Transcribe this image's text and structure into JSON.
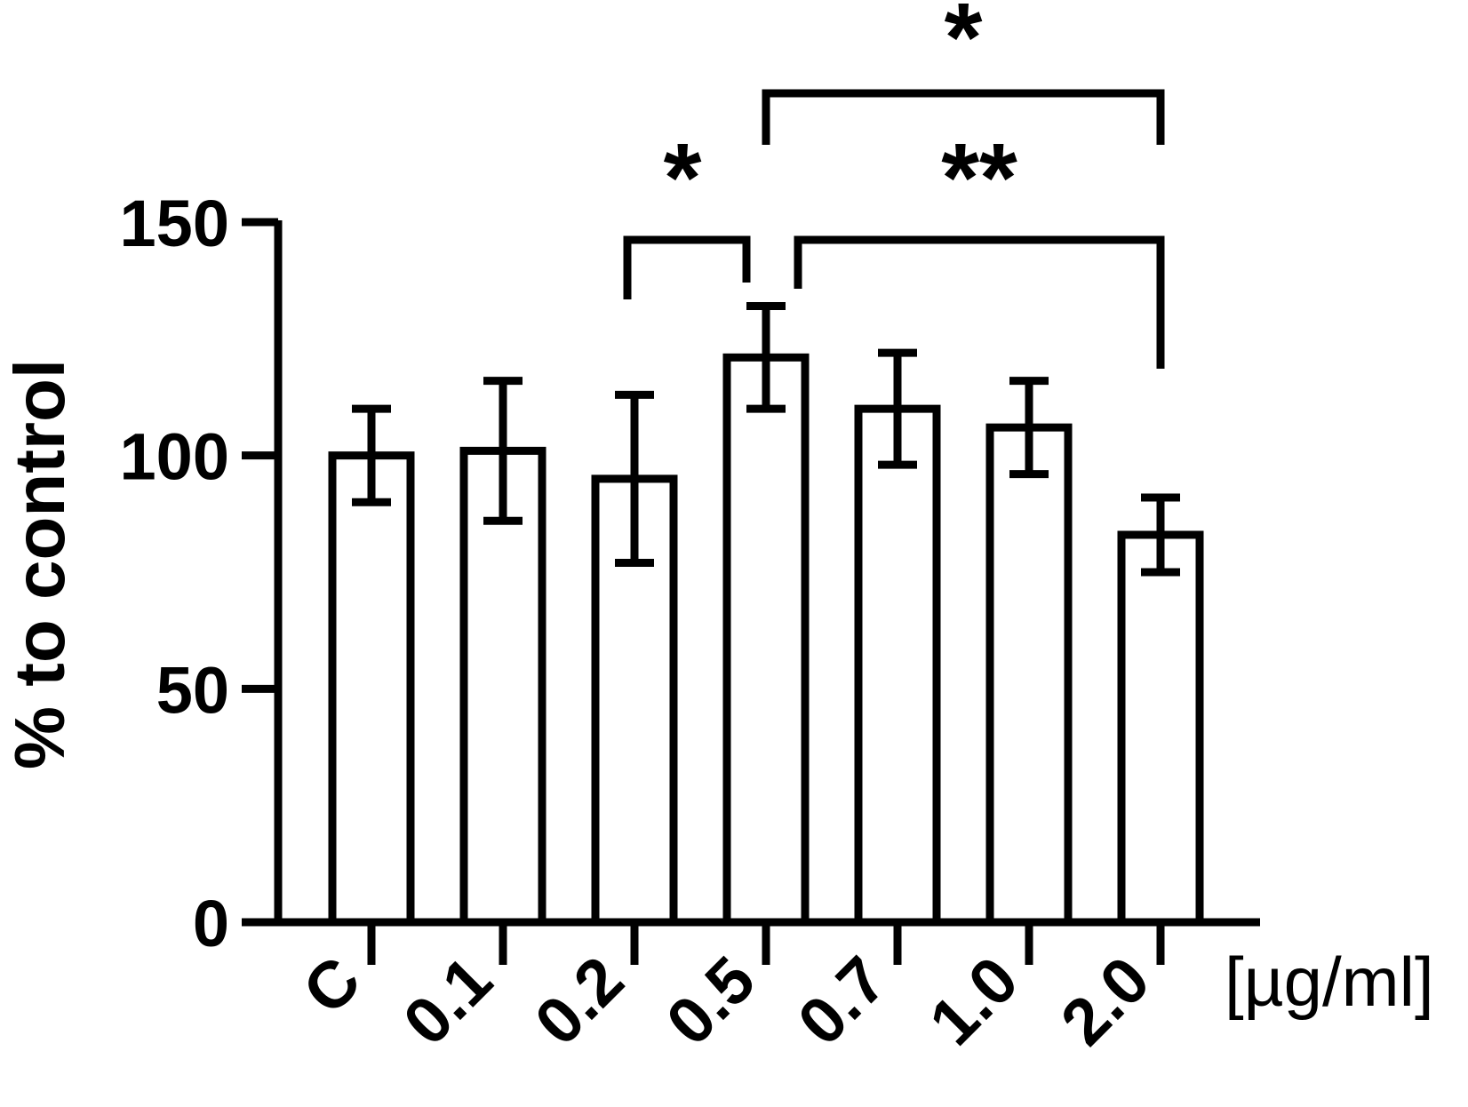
{
  "chart_data": {
    "type": "bar",
    "title": "",
    "xlabel": "",
    "ylabel": "% to control",
    "x_unit": "[µg/ml]",
    "categories": [
      "C",
      "0.1",
      "0.2",
      "0.5",
      "0.7",
      "1.0",
      "2.0"
    ],
    "values": [
      100,
      101,
      95,
      121,
      110,
      106,
      83
    ],
    "errors": [
      10,
      15,
      18,
      11,
      12,
      10,
      8
    ],
    "ylim": [
      0,
      150
    ],
    "yticks": [
      "0",
      "50",
      "100",
      "150"
    ],
    "grid": false,
    "legend": "none",
    "bar_fill": "#ffffff",
    "stroke_color": "#000000",
    "significance": [
      {
        "from": "0.2",
        "to": "0.5",
        "label": "*"
      },
      {
        "from": "0.5",
        "to": "2.0",
        "label": "**"
      },
      {
        "from": "0.5",
        "to": "2.0",
        "label": "*"
      }
    ]
  }
}
